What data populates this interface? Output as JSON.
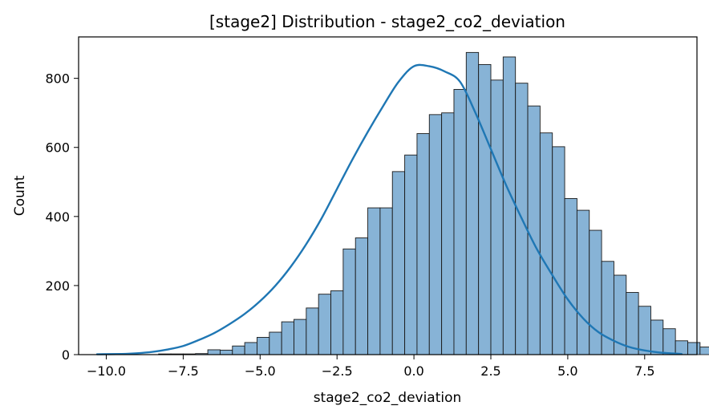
{
  "chart_data": {
    "type": "bar",
    "subtype": "histogram-with-kde",
    "title": "[stage2] Distribution - stage2_co2_deviation",
    "xlabel": "stage2_co2_deviation",
    "ylabel": "Count",
    "xlim": [
      -10.9,
      9.2
    ],
    "ylim": [
      0,
      920
    ],
    "x_ticks": [
      -10.0,
      -7.5,
      -5.0,
      -2.5,
      0.0,
      2.5,
      5.0,
      7.5
    ],
    "x_tick_labels": [
      "−10.0",
      "−7.5",
      "−5.0",
      "−2.5",
      "0.0",
      "2.5",
      "5.0",
      "7.5"
    ],
    "y_ticks": [
      0,
      200,
      400,
      600,
      800
    ],
    "y_tick_labels": [
      "0",
      "200",
      "400",
      "600",
      "800"
    ],
    "bin_width": 0.4,
    "bins_start": -10.3,
    "counts": [
      2,
      0,
      0,
      0,
      0,
      2,
      2,
      2,
      3,
      14,
      13,
      25,
      35,
      50,
      65,
      95,
      102,
      135,
      175,
      185,
      306,
      338,
      425,
      425,
      530,
      578,
      640,
      695,
      700,
      768,
      875,
      840,
      795,
      862,
      786,
      720,
      642,
      602,
      452,
      418,
      360,
      270,
      230,
      180,
      140,
      100,
      75,
      40,
      35,
      22,
      15,
      8,
      5
    ],
    "kde": {
      "x": [
        -10.3,
        -9.5,
        -9.0,
        -8.5,
        -8.0,
        -7.5,
        -7.0,
        -6.5,
        -6.0,
        -5.5,
        -5.0,
        -4.5,
        -4.0,
        -3.5,
        -3.0,
        -2.5,
        -2.0,
        -1.5,
        -1.0,
        -0.5,
        0.0,
        0.5,
        1.0,
        1.5,
        2.0,
        2.5,
        3.0,
        3.5,
        4.0,
        4.5,
        5.0,
        5.5,
        6.0,
        6.5,
        7.0,
        7.5,
        8.0,
        8.7
      ],
      "y": [
        1,
        2,
        4,
        8,
        15,
        25,
        42,
        62,
        88,
        118,
        155,
        200,
        255,
        320,
        395,
        480,
        565,
        645,
        720,
        790,
        835,
        835,
        820,
        790,
        700,
        595,
        490,
        395,
        305,
        230,
        160,
        105,
        65,
        40,
        22,
        12,
        6,
        2
      ]
    },
    "colors": {
      "bar_fill": "#87b3d6",
      "bar_edge": "#1a1a1a",
      "kde_line": "#1f77b4"
    },
    "grid": false,
    "legend": "none"
  }
}
